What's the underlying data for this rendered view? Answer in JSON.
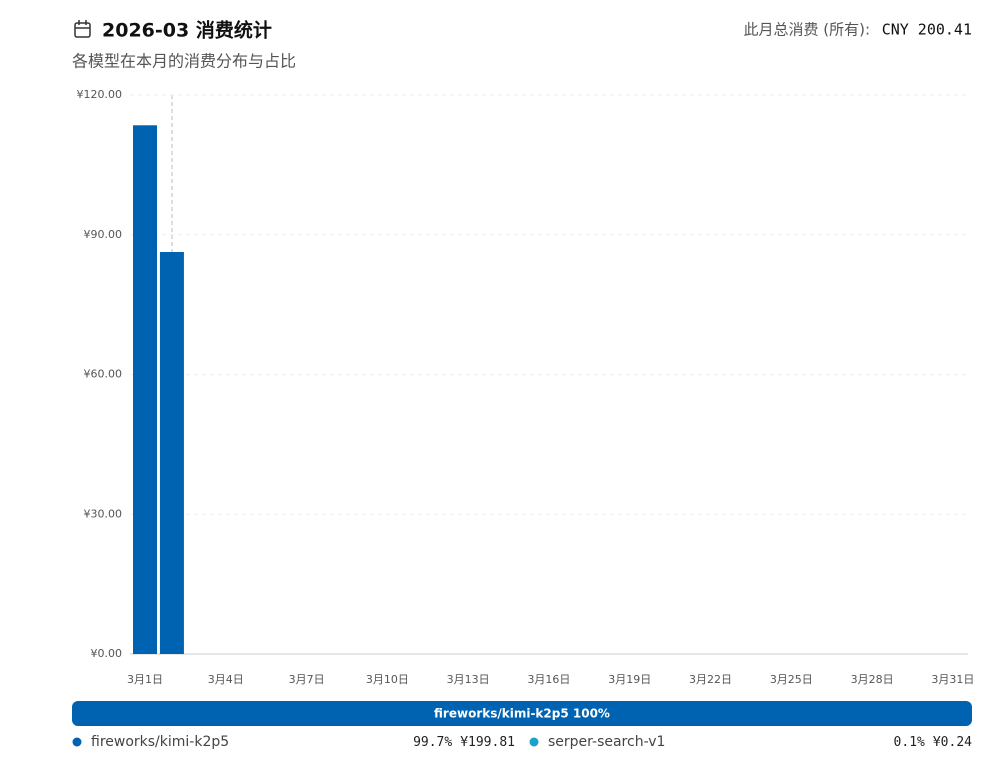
{
  "header": {
    "title": "2026-03 消费统计",
    "subtitle": "各模型在本月的消费分布与占比",
    "total_label": "此月总消费 (所有):",
    "total_value": "CNY 200.41"
  },
  "chart_data": {
    "type": "bar",
    "color": "#0063b1",
    "grid": true,
    "categories": [
      "3月1日",
      null,
      null,
      "3月4日",
      null,
      null,
      "3月7日",
      null,
      null,
      "3月10日",
      null,
      null,
      "3月13日",
      null,
      null,
      "3月16日",
      null,
      null,
      "3月19日",
      null,
      null,
      "3月22日",
      null,
      null,
      "3月25日",
      null,
      null,
      "3月28日",
      null,
      null,
      "3月31日"
    ],
    "values": [
      113.5,
      86.3,
      null,
      null,
      null,
      null,
      null,
      null,
      null,
      null,
      null,
      null,
      null,
      null,
      null,
      null,
      null,
      null,
      null,
      null,
      null,
      null,
      null,
      null,
      null,
      null,
      null,
      null,
      null,
      null,
      null
    ],
    "ylim": [
      0,
      120
    ],
    "yticks": [
      {
        "value": 0,
        "label": "¥0.00"
      },
      {
        "value": 30,
        "label": "¥30.00"
      },
      {
        "value": 60,
        "label": "¥60.00"
      },
      {
        "value": 90,
        "label": "¥90.00"
      },
      {
        "value": 120,
        "label": "¥120.00"
      }
    ]
  },
  "share_bar": {
    "label": "fireworks/kimi-k2p5 100%"
  },
  "legend": [
    {
      "name": "fireworks/kimi-k2p5",
      "color": "#0063b1",
      "percent": "99.7%",
      "amount": "¥199.81"
    },
    {
      "name": "serper-search-v1",
      "color": "#1aa3c8",
      "percent": "0.1%",
      "amount": "¥0.24"
    }
  ]
}
